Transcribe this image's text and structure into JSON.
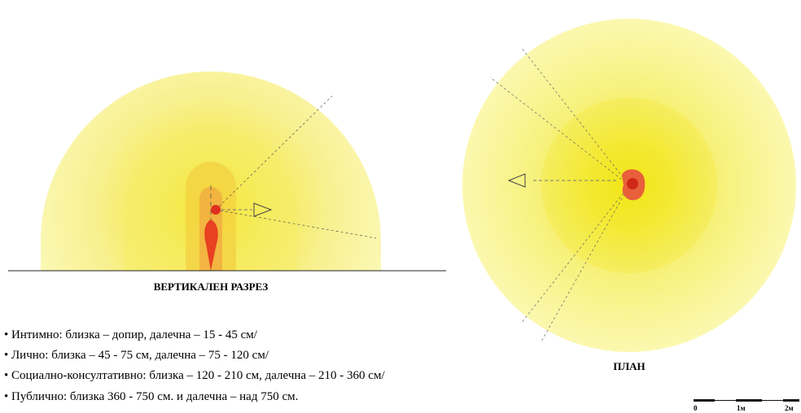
{
  "section_label": "ВЕРТИКАЛЕН РАЗРЕЗ",
  "plan_label": "ПЛАН",
  "zones": [
    "• Интимно: близка – допир, далечна – 15 - 45 см/",
    "• Лично: близка – 45 - 75 см, далечна – 75 - 120 см/",
    "• Социално-консултативно: близка – 120 - 210 см, далечна – 210 - 360 см/",
    "• Публично: близка 360 - 750 см. и далечна – над 750 см."
  ],
  "scale": {
    "labels": [
      "0",
      "1м",
      "2м"
    ]
  }
}
